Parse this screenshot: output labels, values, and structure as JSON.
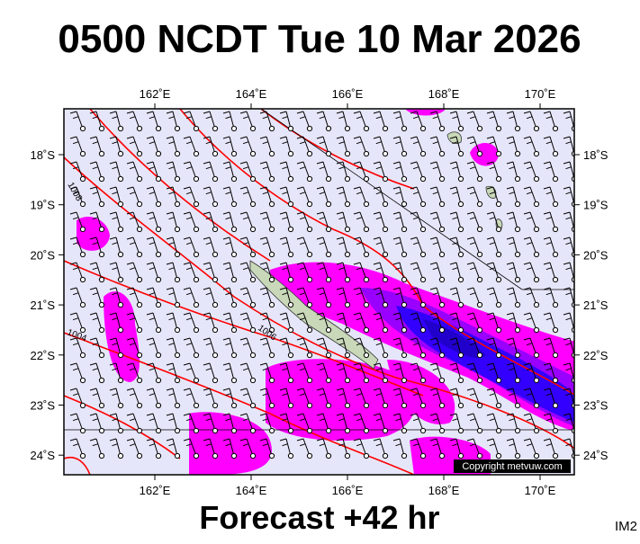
{
  "map": {
    "title": "0500 NCDT Tue 10 Mar 2026",
    "lon_labels": [
      "162˚E",
      "164˚E",
      "166˚E",
      "168˚E",
      "170˚E"
    ],
    "lat_labels": [
      "18˚S",
      "19˚S",
      "20˚S",
      "21˚S",
      "22˚S",
      "23˚S",
      "24˚S"
    ],
    "isobar_labels": [
      "1008",
      "1006",
      "1004"
    ],
    "copyright": "Copyright metvuw.com",
    "footer": "Forecast +42 hr",
    "id": "IM2"
  }
}
